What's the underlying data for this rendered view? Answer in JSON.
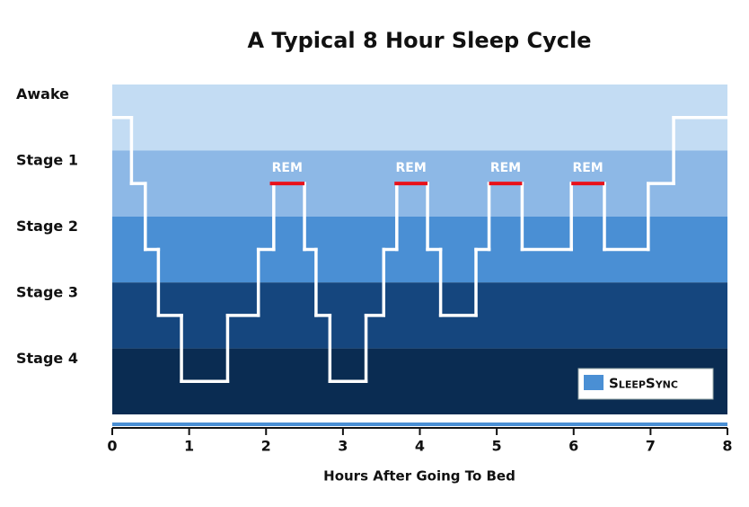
{
  "chart_data": {
    "type": "step",
    "title": "A Typical 8 Hour Sleep Cycle",
    "x_label": "Hours After Going To Bed",
    "xlim": [
      0,
      8
    ],
    "xticks": [
      0,
      1,
      2,
      3,
      4,
      5,
      6,
      7,
      8
    ],
    "ylim": [
      -0.5,
      4.5
    ],
    "y_inverted": true,
    "yticks": [
      {
        "value": 0,
        "label": "Awake"
      },
      {
        "value": 1,
        "label": "Stage 1"
      },
      {
        "value": 2,
        "label": "Stage 2"
      },
      {
        "value": 3,
        "label": "Stage 3"
      },
      {
        "value": 4,
        "label": "Stage 4"
      }
    ],
    "band_colors": [
      "#c3dcf3",
      "#8db8e6",
      "#4a8fd4",
      "#15467e",
      "#0a2c52"
    ],
    "series": [
      {
        "color": "#ffffff",
        "x": [
          0,
          0.25,
          0.43,
          0.6,
          0.9,
          1.5,
          1.9,
          2.1,
          2.5,
          2.65,
          2.83,
          3.3,
          3.53,
          3.7,
          4.1,
          4.27,
          4.73,
          4.9,
          5.33,
          5.97,
          6.4,
          6.97,
          7.3,
          8
        ],
        "values": [
          0,
          1,
          2,
          3,
          4,
          3,
          2,
          1,
          2,
          3,
          4,
          3,
          2,
          1,
          2,
          3,
          2,
          1,
          2,
          1,
          2,
          1,
          0,
          0
        ]
      }
    ],
    "annotations": [
      {
        "label": "REM",
        "x0": 2.05,
        "x1": 2.5,
        "y": 1,
        "color": "#e8101a"
      },
      {
        "label": "REM",
        "x0": 3.67,
        "x1": 4.1,
        "y": 1,
        "color": "#e8101a"
      },
      {
        "label": "REM",
        "x0": 4.9,
        "x1": 5.33,
        "y": 1,
        "color": "#e8101a"
      },
      {
        "label": "REM",
        "x0": 5.97,
        "x1": 6.4,
        "y": 1,
        "color": "#e8101a"
      }
    ],
    "logo": "SleepSync"
  }
}
